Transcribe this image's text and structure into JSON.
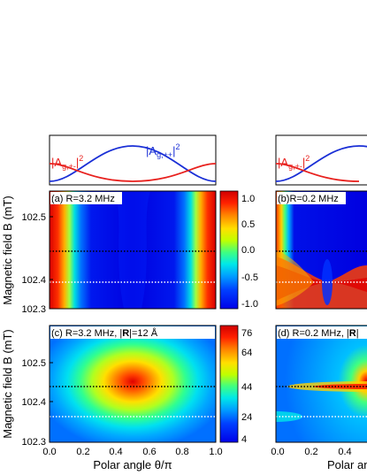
{
  "colors": {
    "red_curve": "#e8211e",
    "blue_curve": "#1a2fd6",
    "dot_black": "#000000",
    "dot_white": "#ffffff",
    "colormap": [
      "#0000e8",
      "#0040ff",
      "#00a0ff",
      "#00e8e8",
      "#40ff80",
      "#c0ff00",
      "#ffe000",
      "#ff8000",
      "#ff2000",
      "#d00000"
    ]
  },
  "top_strip": {
    "label_red": "|A",
    "label_red_sub": "g,+-",
    "label_red_sup": "2",
    "label_blue": "|A",
    "label_blue_sub": "g,++",
    "label_blue_sup": "2"
  },
  "y_axis_label": "Magnetic field B (mT)",
  "x_axis_label": "Polar angle θ/π",
  "x_ticks": [
    "0.0",
    "0.2",
    "0.4",
    "0.6",
    "0.8",
    "1.0"
  ],
  "y_ticks": [
    "102.3",
    "102.4",
    "102.5"
  ],
  "panels": {
    "a": {
      "label": "(a) R=3.2 MHz"
    },
    "b": {
      "label": "(b)R=0.2 MHz"
    },
    "c": {
      "label": "(c) R=3.2 MHz, |",
      "label_bold": "R",
      "label_end": "|=12 Å"
    },
    "d": {
      "label": "(d) R=0.2 MHz, |",
      "label_bold": "R",
      "label_end": "|"
    }
  },
  "colorbar_top": {
    "ticks": [
      "1.0",
      "0.5",
      "0.0",
      "-0.5",
      "-1.0"
    ]
  },
  "colorbar_bottom": {
    "ticks": [
      "76",
      "64",
      "44",
      "24",
      "4"
    ]
  }
}
